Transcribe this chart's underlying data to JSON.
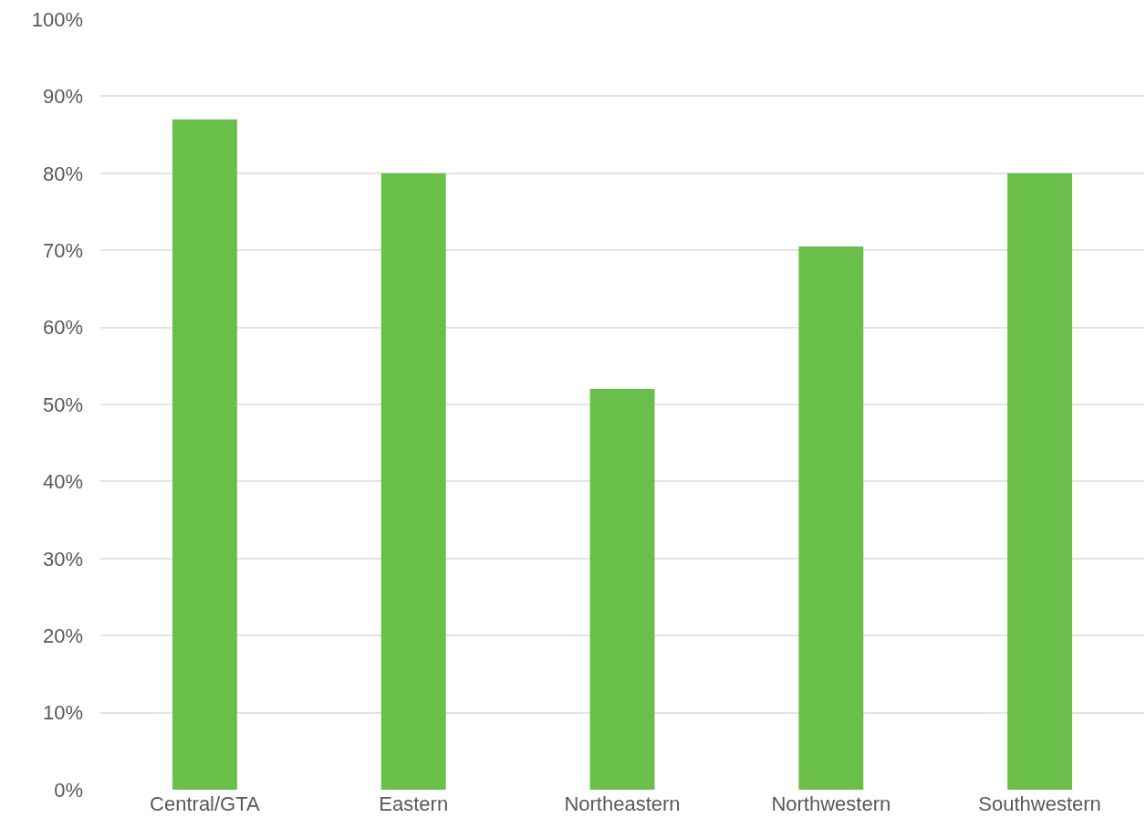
{
  "chart_data": {
    "type": "bar",
    "categories": [
      "Central/GTA",
      "Eastern",
      "Northeastern",
      "Northwestern",
      "Southwestern"
    ],
    "values": [
      87,
      80,
      52,
      70.5,
      80
    ],
    "color": "#6abf4b",
    "ylim": [
      0,
      100
    ],
    "yticks": [
      {
        "value": 0,
        "label": "0%"
      },
      {
        "value": 10,
        "label": "10%"
      },
      {
        "value": 20,
        "label": "20%"
      },
      {
        "value": 30,
        "label": "30%"
      },
      {
        "value": 40,
        "label": "40%"
      },
      {
        "value": 50,
        "label": "50%"
      },
      {
        "value": 60,
        "label": "60%"
      },
      {
        "value": 70,
        "label": "70%"
      },
      {
        "value": 80,
        "label": "80%"
      },
      {
        "value": 90,
        "label": "90%"
      },
      {
        "value": 100,
        "label": "100%"
      }
    ],
    "grid": "y"
  }
}
